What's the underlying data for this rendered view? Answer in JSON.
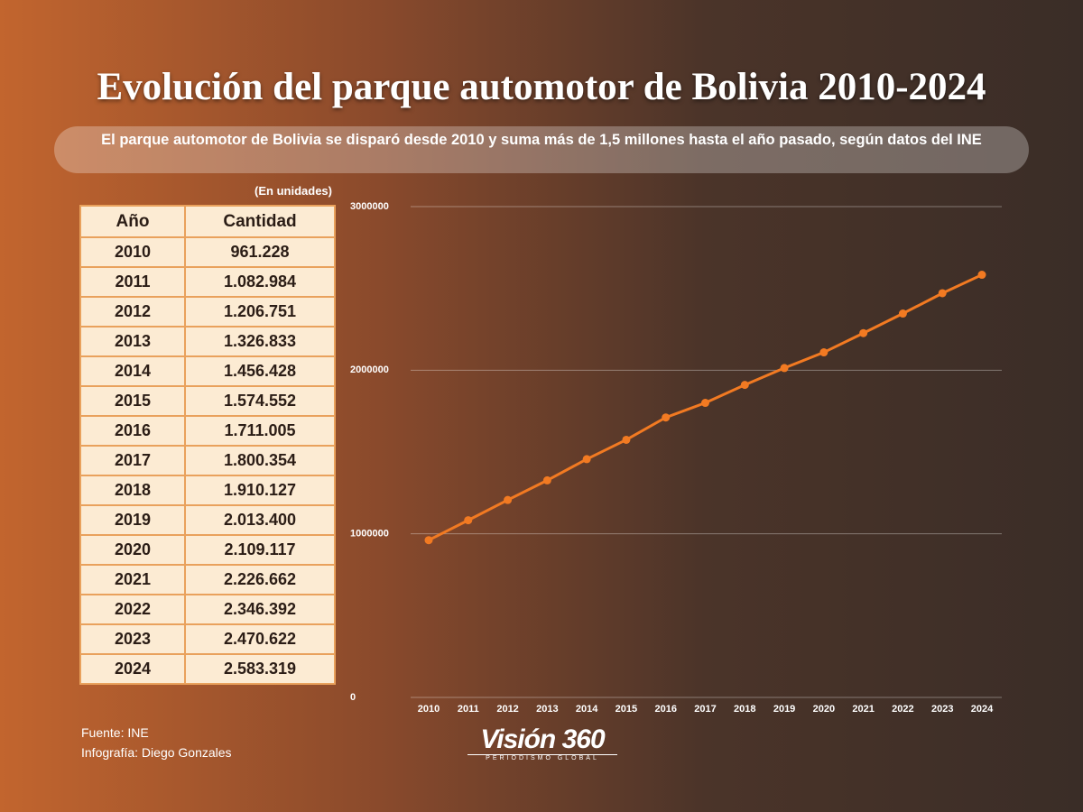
{
  "title": "Evolución del parque automotor de Bolivia 2010-2024",
  "subtitle": "El parque automotor de Bolivia se disparó desde 2010 y suma más de 1,5 millones hasta el año pasado, según datos del INE",
  "unit_note": "(En unidades)",
  "table": {
    "header": [
      "Año",
      "Cantidad"
    ],
    "rows": [
      [
        "2010",
        "961.228"
      ],
      [
        "2011",
        "1.082.984"
      ],
      [
        "2012",
        "1.206.751"
      ],
      [
        "2013",
        "1.326.833"
      ],
      [
        "2014",
        "1.456.428"
      ],
      [
        "2015",
        "1.574.552"
      ],
      [
        "2016",
        "1.711.005"
      ],
      [
        "2017",
        "1.800.354"
      ],
      [
        "2018",
        "1.910.127"
      ],
      [
        "2019",
        "2.013.400"
      ],
      [
        "2020",
        "2.109.117"
      ],
      [
        "2021",
        "2.226.662"
      ],
      [
        "2022",
        "2.346.392"
      ],
      [
        "2023",
        "2.470.622"
      ],
      [
        "2024",
        "2.583.319"
      ]
    ]
  },
  "source": "Fuente: INE",
  "credit": "Infografía: Diego Gonzales",
  "logo": {
    "name": "Visión 360",
    "tagline": "PERIODISMO GLOBAL"
  },
  "chart_data": {
    "type": "line",
    "categories": [
      "2010",
      "2011",
      "2012",
      "2013",
      "2014",
      "2015",
      "2016",
      "2017",
      "2018",
      "2019",
      "2020",
      "2021",
      "2022",
      "2023",
      "2024"
    ],
    "values": [
      961228,
      1082984,
      1206751,
      1326833,
      1456428,
      1574552,
      1711005,
      1800354,
      1910127,
      2013400,
      2109117,
      2226662,
      2346392,
      2470622,
      2583319
    ],
    "color": "#f27a22",
    "ylim": [
      0,
      3000000
    ],
    "yticks": [
      0,
      1000000,
      2000000,
      3000000
    ],
    "grid": true
  }
}
